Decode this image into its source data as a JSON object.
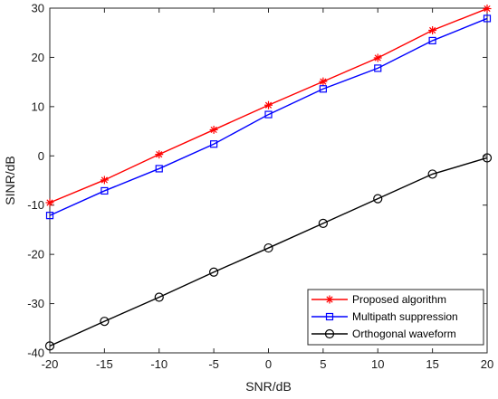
{
  "chart_data": {
    "type": "line",
    "title": "",
    "xlabel": "SNR/dB",
    "ylabel": "SINR/dB",
    "x": [
      -20,
      -15,
      -10,
      -5,
      0,
      5,
      10,
      15,
      20
    ],
    "xlim": [
      -20,
      20
    ],
    "ylim": [
      -40,
      30
    ],
    "xticks": [
      -20,
      -15,
      -10,
      -5,
      0,
      5,
      10,
      15,
      20
    ],
    "yticks": [
      -40,
      -30,
      -20,
      -10,
      0,
      10,
      20,
      30
    ],
    "grid": false,
    "legend_position": "bottom-right",
    "series": [
      {
        "name": "Proposed algorithm",
        "color": "#ff0000",
        "marker": "asterisk",
        "values": [
          -9.5,
          -4.9,
          0.3,
          5.3,
          10.3,
          15.1,
          19.9,
          25.5,
          29.9
        ]
      },
      {
        "name": "Multipath suppression",
        "color": "#0000ff",
        "marker": "square",
        "values": [
          -12.1,
          -7.1,
          -2.6,
          2.4,
          8.4,
          13.6,
          17.8,
          23.4,
          27.9
        ]
      },
      {
        "name": "Orthogonal waveform",
        "color": "#000000",
        "marker": "circle",
        "values": [
          -38.6,
          -33.6,
          -28.7,
          -23.6,
          -18.7,
          -13.7,
          -8.7,
          -3.7,
          -0.4
        ]
      }
    ]
  }
}
